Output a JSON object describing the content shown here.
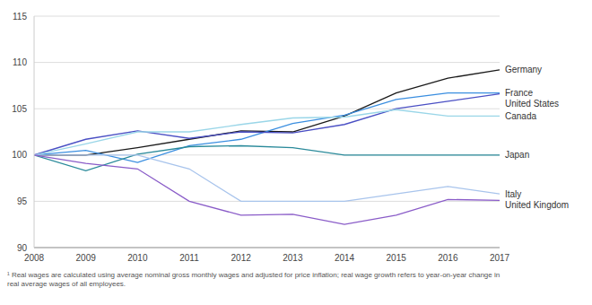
{
  "chart_data": {
    "type": "line",
    "x": [
      2008,
      2009,
      2010,
      2011,
      2012,
      2013,
      2014,
      2015,
      2016,
      2017
    ],
    "xlim": [
      2008,
      2017
    ],
    "xticks": [
      2008,
      2009,
      2010,
      2011,
      2012,
      2013,
      2014,
      2015,
      2016,
      2017
    ],
    "ylim": [
      90,
      115
    ],
    "yticks": [
      90,
      95,
      100,
      105,
      110,
      115
    ],
    "grid": true,
    "series": [
      {
        "name": "Germany",
        "color": "#1a1a1a",
        "values": [
          100,
          100,
          100.8,
          101.7,
          102.6,
          102.5,
          104.2,
          106.7,
          108.3,
          109.2
        ]
      },
      {
        "name": "France",
        "color": "#3a8ee0",
        "values": [
          100,
          100.5,
          99.2,
          101.0,
          101.7,
          103.4,
          104.3,
          106.0,
          106.7,
          106.7
        ]
      },
      {
        "name": "United States",
        "color": "#4a4fc4",
        "values": [
          100,
          101.7,
          102.6,
          101.8,
          102.5,
          102.4,
          103.3,
          105.0,
          105.8,
          106.6
        ]
      },
      {
        "name": "Canada",
        "color": "#9ad6e8",
        "values": [
          100,
          101.2,
          102.5,
          102.5,
          103.3,
          104.0,
          104.1,
          104.9,
          104.2,
          104.2
        ]
      },
      {
        "name": "Japan",
        "color": "#2a8a9a",
        "values": [
          100,
          98.3,
          100.1,
          100.9,
          101.0,
          100.8,
          100.0,
          100.0,
          100.0,
          100.0
        ]
      },
      {
        "name": "Italy",
        "color": "#a8c4ec",
        "values": [
          100,
          100,
          100.0,
          98.5,
          95.0,
          95.0,
          95.0,
          95.8,
          96.6,
          95.8
        ]
      },
      {
        "name": "United Kingdom",
        "color": "#8a5cc8",
        "values": [
          100,
          99.1,
          98.5,
          95.0,
          93.5,
          93.6,
          92.5,
          93.5,
          95.2,
          95.1
        ]
      }
    ],
    "footnote": "¹ Real wages are calculated using average nominal gross monthly wages and adjusted for price inflation; real wage growth refers to year-on-year change in real average wages of all employees."
  }
}
